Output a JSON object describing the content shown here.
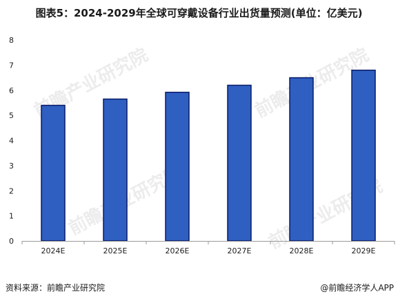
{
  "chart_data": {
    "type": "bar",
    "title": "图表5：2024-2029年全球可穿戴设备行业出货量预测(单位：亿美元)",
    "categories": [
      "2024E",
      "2025E",
      "2026E",
      "2027E",
      "2028E",
      "2029E"
    ],
    "values": [
      5.4,
      5.65,
      5.92,
      6.2,
      6.5,
      6.8
    ],
    "xlabel": "",
    "ylabel": "",
    "ylim": [
      0,
      8
    ],
    "yticks": [
      0,
      1,
      2,
      3,
      4,
      5,
      6,
      7,
      8
    ],
    "grid": false,
    "legend": "none",
    "bar_color": "#2f5fc0",
    "bar_edge_color": "#0a1a66"
  },
  "footer": {
    "source": "资料来源：前瞻产业研究院",
    "credit": "@前瞻经济学人APP"
  },
  "watermark": {
    "text": "前瞻产业研究院"
  }
}
